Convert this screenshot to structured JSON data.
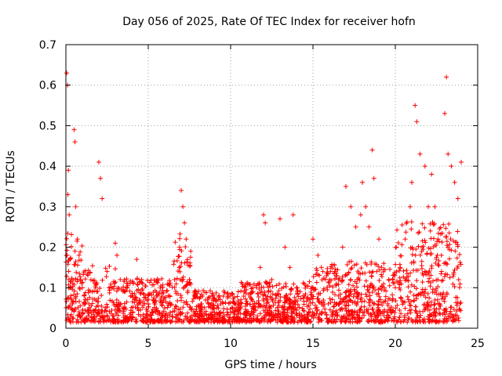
{
  "chart_data": {
    "type": "scatter",
    "title": "Day 056 of 2025, Rate Of TEC Index for receiver hofn",
    "xlabel": "GPS time / hours",
    "ylabel": "ROTI / TECUs",
    "xlim": [
      0,
      25
    ],
    "ylim": [
      0,
      0.7
    ],
    "xticks": [
      0,
      5,
      10,
      15,
      20,
      25
    ],
    "yticks": [
      0,
      0.1,
      0.2,
      0.3,
      0.4,
      0.5,
      0.6,
      0.7
    ],
    "xtick_labels": [
      "0",
      "5",
      "10",
      "15",
      "20",
      "25"
    ],
    "ytick_labels": [
      "0",
      "0.1",
      "0.2",
      "0.3",
      "0.4",
      "0.5",
      "0.6",
      "0.7"
    ],
    "grid": true,
    "marker": "+",
    "marker_color": "#ff0000",
    "series": [
      {
        "x": [
          0.05,
          0.1,
          0.15,
          0.12,
          0.2,
          0.08,
          0.18,
          0.25,
          0.3,
          0.35,
          0.4,
          0.5,
          0.55,
          0.6,
          0.7,
          0.8,
          0.9,
          1.0,
          1.1,
          1.2,
          1.4,
          1.6,
          1.8,
          2.0,
          2.1,
          2.2,
          2.5,
          2.8,
          3.0,
          3.1,
          3.3,
          3.6,
          4.0,
          4.3,
          4.6,
          5.0,
          5.5,
          6.0,
          6.3,
          6.6,
          6.9,
          7.0,
          7.1,
          7.2,
          7.3,
          7.5,
          7.8,
          8.2,
          8.6,
          9.0,
          9.4,
          9.8,
          10.2,
          10.6,
          11.0,
          11.4,
          11.8,
          12.0,
          12.1,
          12.5,
          12.8,
          13.0,
          13.3,
          13.6,
          13.8,
          14.0,
          14.4,
          14.8,
          15.0,
          15.3,
          15.6,
          16.0,
          16.4,
          16.8,
          17.0,
          17.3,
          17.6,
          17.9,
          18.0,
          18.2,
          18.4,
          18.6,
          18.7,
          19.0,
          19.3,
          19.6,
          20.0,
          20.3,
          20.6,
          20.9,
          21.0,
          21.2,
          21.3,
          21.5,
          21.8,
          22.0,
          22.2,
          22.4,
          22.6,
          22.8,
          23.0,
          23.1,
          23.2,
          23.4,
          23.6,
          23.8,
          24.0
        ],
        "y": [
          0.63,
          0.6,
          0.39,
          0.33,
          0.28,
          0.18,
          0.12,
          0.1,
          0.08,
          0.07,
          0.06,
          0.49,
          0.46,
          0.3,
          0.22,
          0.18,
          0.12,
          0.1,
          0.08,
          0.07,
          0.06,
          0.09,
          0.1,
          0.41,
          0.37,
          0.32,
          0.14,
          0.1,
          0.21,
          0.18,
          0.12,
          0.09,
          0.08,
          0.17,
          0.12,
          0.06,
          0.05,
          0.05,
          0.08,
          0.12,
          0.2,
          0.34,
          0.3,
          0.26,
          0.22,
          0.12,
          0.08,
          0.06,
          0.07,
          0.05,
          0.06,
          0.04,
          0.04,
          0.05,
          0.06,
          0.05,
          0.15,
          0.28,
          0.26,
          0.12,
          0.08,
          0.27,
          0.2,
          0.15,
          0.28,
          0.1,
          0.08,
          0.07,
          0.22,
          0.18,
          0.14,
          0.12,
          0.13,
          0.2,
          0.35,
          0.3,
          0.25,
          0.28,
          0.36,
          0.3,
          0.25,
          0.44,
          0.37,
          0.22,
          0.16,
          0.12,
          0.1,
          0.15,
          0.22,
          0.3,
          0.36,
          0.55,
          0.51,
          0.43,
          0.4,
          0.3,
          0.38,
          0.3,
          0.22,
          0.18,
          0.53,
          0.62,
          0.43,
          0.4,
          0.36,
          0.32,
          0.41
        ],
        "name": ""
      }
    ]
  }
}
